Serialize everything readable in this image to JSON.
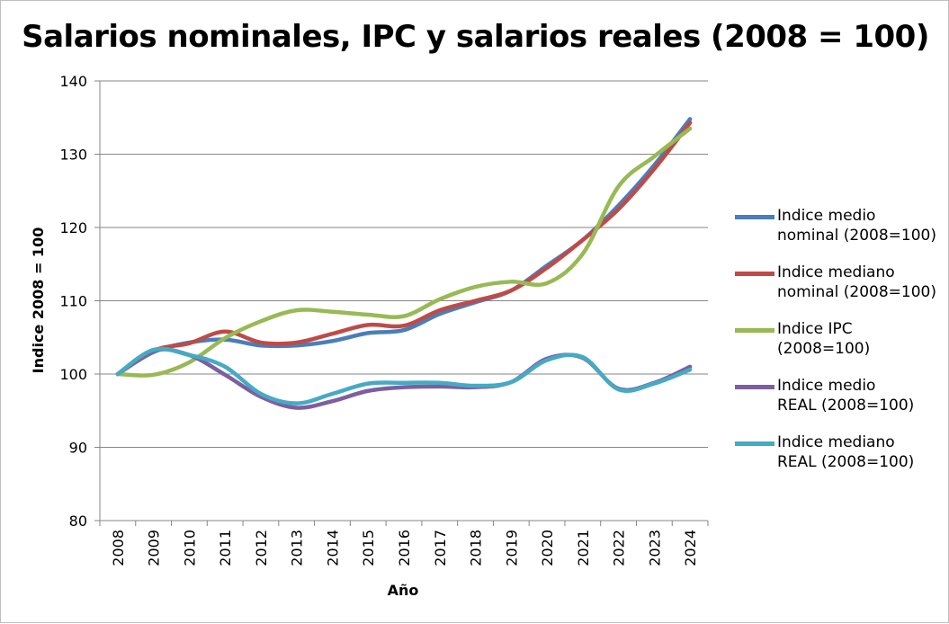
{
  "chart_data": {
    "type": "line",
    "title": "Salarios nominales, IPC y salarios reales (2008 = 100)",
    "xlabel": "Año",
    "ylabel": "Indice 2008 = 100",
    "ylim": [
      80,
      140
    ],
    "yticks": [
      "80",
      "90",
      "100",
      "110",
      "120",
      "130",
      "140"
    ],
    "x": [
      "2008",
      "2009",
      "2010",
      "2011",
      "2012",
      "2013",
      "2014",
      "2015",
      "2016",
      "2017",
      "2018",
      "2019",
      "2020",
      "2021",
      "2022",
      "2023",
      "2024"
    ],
    "grid": "horizontal",
    "legend_position": "right",
    "series": [
      {
        "name": "Indice medio nominal (2008=100)",
        "color": "#4a7ebb",
        "values": [
          100,
          103.0,
          104.3,
          104.7,
          103.9,
          103.9,
          104.5,
          105.6,
          106.0,
          108.2,
          109.8,
          111.4,
          114.8,
          118.3,
          123.0,
          128.5,
          134.8
        ]
      },
      {
        "name": "Indice mediano nominal (2008=100)",
        "color": "#be4b48",
        "values": [
          100,
          103.2,
          104.2,
          105.8,
          104.3,
          104.3,
          105.5,
          106.7,
          106.6,
          108.7,
          110.0,
          111.4,
          114.5,
          118.3,
          122.5,
          128.0,
          134.3
        ]
      },
      {
        "name": "Indice IPC (2008=100)",
        "color": "#98b954",
        "values": [
          100,
          99.9,
          101.6,
          104.9,
          107.2,
          108.7,
          108.5,
          108.1,
          107.9,
          110.2,
          111.9,
          112.6,
          112.4,
          116.4,
          125.6,
          129.7,
          133.5
        ]
      },
      {
        "name": "Indice medio REAL (2008=100)",
        "color": "#7d5fa0",
        "values": [
          100,
          103.2,
          102.6,
          99.9,
          96.9,
          95.4,
          96.3,
          97.7,
          98.2,
          98.3,
          98.2,
          98.9,
          102.1,
          102.2,
          98.0,
          98.8,
          101.0
        ]
      },
      {
        "name": "Indice mediano REAL (2008=100)",
        "color": "#46aac5",
        "values": [
          100,
          103.3,
          102.6,
          101.0,
          97.3,
          96.0,
          97.3,
          98.7,
          98.8,
          98.8,
          98.4,
          98.9,
          101.9,
          102.3,
          97.9,
          98.7,
          100.6
        ]
      }
    ]
  },
  "legend": [
    {
      "line1": "Indice medio",
      "line2": "nominal (2008=100)",
      "color": "#4a7ebb"
    },
    {
      "line1": "Indice mediano",
      "line2": "nominal (2008=100)",
      "color": "#be4b48"
    },
    {
      "line1": "Indice IPC",
      "line2": "(2008=100)",
      "color": "#98b954"
    },
    {
      "line1": "Indice medio",
      "line2": "REAL (2008=100)",
      "color": "#7d5fa0"
    },
    {
      "line1": "Indice mediano",
      "line2": "REAL (2008=100)",
      "color": "#46aac5"
    }
  ]
}
